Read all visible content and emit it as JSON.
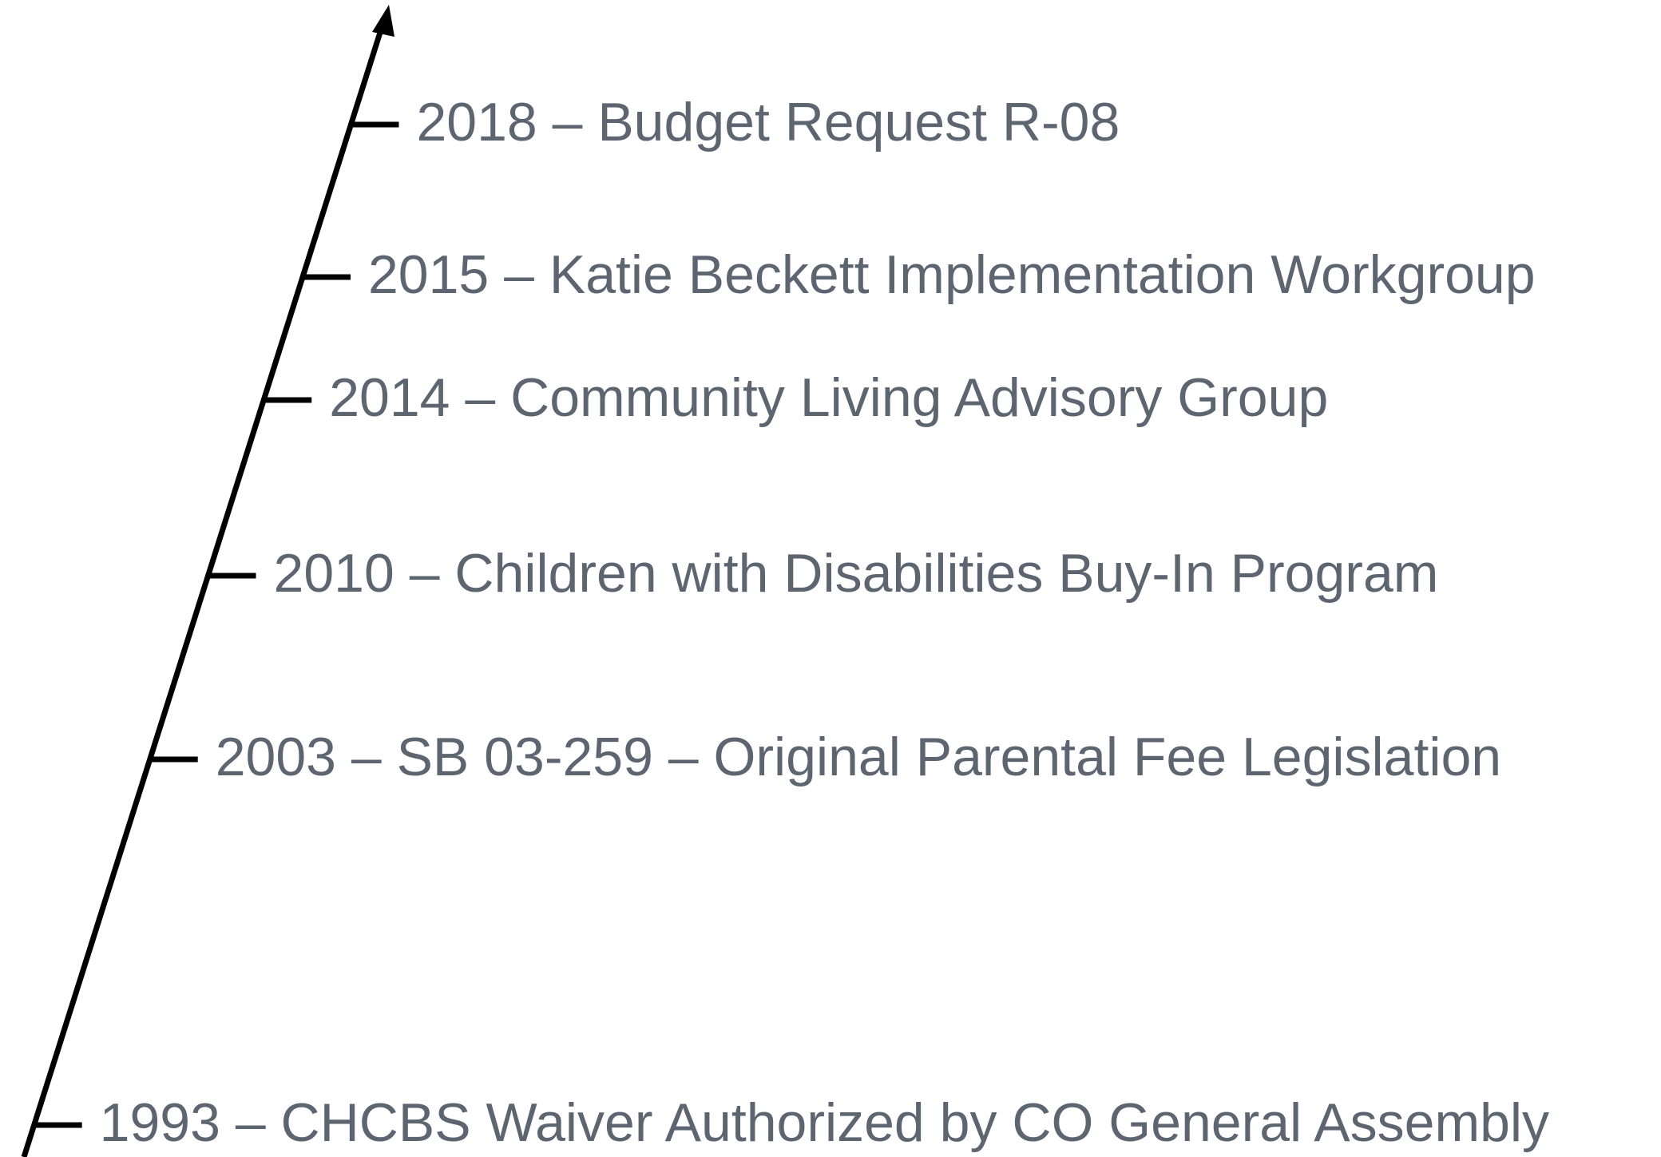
{
  "timeline": {
    "events": [
      {
        "label": "2018 – Budget Request R-08"
      },
      {
        "label": "2015 – Katie Beckett Implementation Workgroup"
      },
      {
        "label": "2014 – Community Living Advisory Group"
      },
      {
        "label": "2010 – Children with Disabilities Buy-In Program"
      },
      {
        "label": "2003 – SB 03-259 – Original Parental Fee Legislation"
      },
      {
        "label": "1993 – CHCBS Waiver Authorized by CO General Assembly"
      }
    ]
  }
}
